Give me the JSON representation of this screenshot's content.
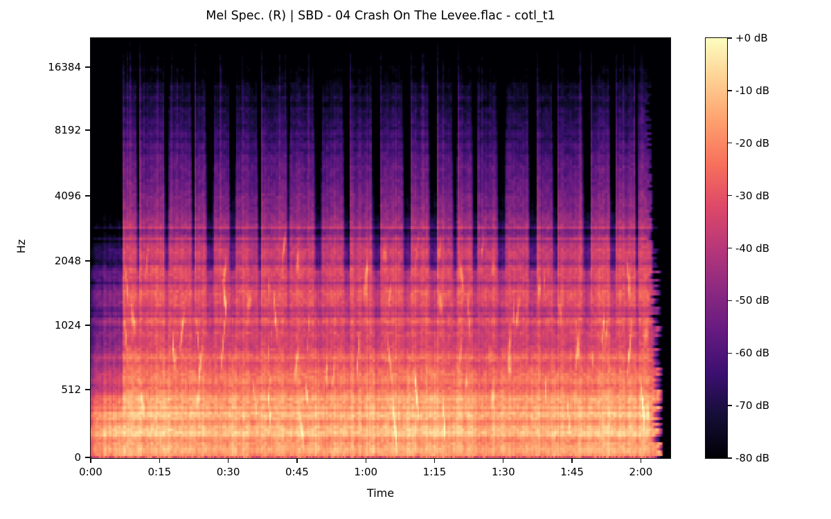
{
  "figure": {
    "title": "Mel Spec. (R) | SBD - 04 Crash On The Levee.flac - cotl_t1",
    "xlabel": "Time",
    "ylabel": "Hz",
    "background_color": "#ffffff",
    "text_color": "#000000"
  },
  "axes": {
    "x_tick_labels": [
      "0:00",
      "0:15",
      "0:30",
      "0:45",
      "1:00",
      "1:15",
      "1:30",
      "1:45",
      "2:00"
    ],
    "y_tick_labels": [
      "16384",
      "8192",
      "4096",
      "2048",
      "1024",
      "512",
      "0"
    ]
  },
  "colorbar": {
    "tick_labels": [
      "+0 dB",
      "-10 dB",
      "-20 dB",
      "-30 dB",
      "-40 dB",
      "-50 dB",
      "-60 dB",
      "-70 dB",
      "-80 dB"
    ],
    "colormap": "magma",
    "gradient_stops_hex": [
      "#000004",
      "#140e36",
      "#3b0f70",
      "#641a80",
      "#8c2981",
      "#b73779",
      "#de4968",
      "#f7705c",
      "#fe9f6d",
      "#fecf92",
      "#fcfdbf"
    ]
  },
  "chart_data": {
    "type": "heatmap",
    "subtype": "mel-spectrogram",
    "title": "Mel Spec. (R) | SBD - 04 Crash On The Levee.flac - cotl_t1",
    "xlabel": "Time",
    "ylabel": "Hz",
    "x_tick_seconds": [
      0,
      15,
      30,
      45,
      60,
      75,
      90,
      105,
      120
    ],
    "x_tick_labels": [
      "0:00",
      "0:15",
      "0:30",
      "0:45",
      "1:00",
      "1:15",
      "1:30",
      "1:45",
      "2:00"
    ],
    "y_tick_hz": [
      16384,
      8192,
      4096,
      2048,
      1024,
      512,
      0
    ],
    "duration_seconds_approx": 126.4,
    "value_range_db": [
      -80,
      0
    ],
    "colorbar_tick_db": [
      0,
      -10,
      -20,
      -30,
      -40,
      -50,
      -60,
      -70,
      -80
    ],
    "colormap": "magma",
    "legend": "none",
    "grid": false,
    "content_summary": "Full-band live music recording. Quiet low-frequency-only intro for ~7 s, then continuous loud material: bright orange/yellow energy below ~1 kHz, banded orange-red mids with bright slanted vocal/guitar streaks, and repeated vertical burst phrases reaching above 8 kHz separated by darker gaps. Music stops ~122 s with a ragged reverb tail decaying to silence before the right edge (~126 s).",
    "model": {
      "seed": 911,
      "duration_s": 126.4,
      "intro_end_s": 6.9,
      "intro_spike_s": 4.6,
      "music_end_s": 122.2,
      "silence_s": 124.6,
      "phrase_on_min_s": 2.2,
      "phrase_on_max_s": 5.5,
      "phrase_gap_min_s": 0.7,
      "phrase_gap_max_s": 2.2,
      "band_stripe_db": 9,
      "spike_gain_db": 16,
      "streak_gain_db_min": 9,
      "streak_gain_db_max": 18,
      "cell_noise_db": 11,
      "outro_decay_db_per_s": 30,
      "base_profile_db": [
        [
          0,
          -22
        ],
        [
          0.02,
          -15
        ],
        [
          0.08,
          -13
        ],
        [
          0.15,
          -18
        ],
        [
          0.25,
          -25
        ],
        [
          0.35,
          -30
        ],
        [
          0.45,
          -36
        ],
        [
          0.55,
          -44
        ],
        [
          0.65,
          -53
        ],
        [
          0.75,
          -62
        ],
        [
          0.85,
          -72
        ],
        [
          0.93,
          -79
        ],
        [
          1,
          -86
        ]
      ]
    }
  }
}
